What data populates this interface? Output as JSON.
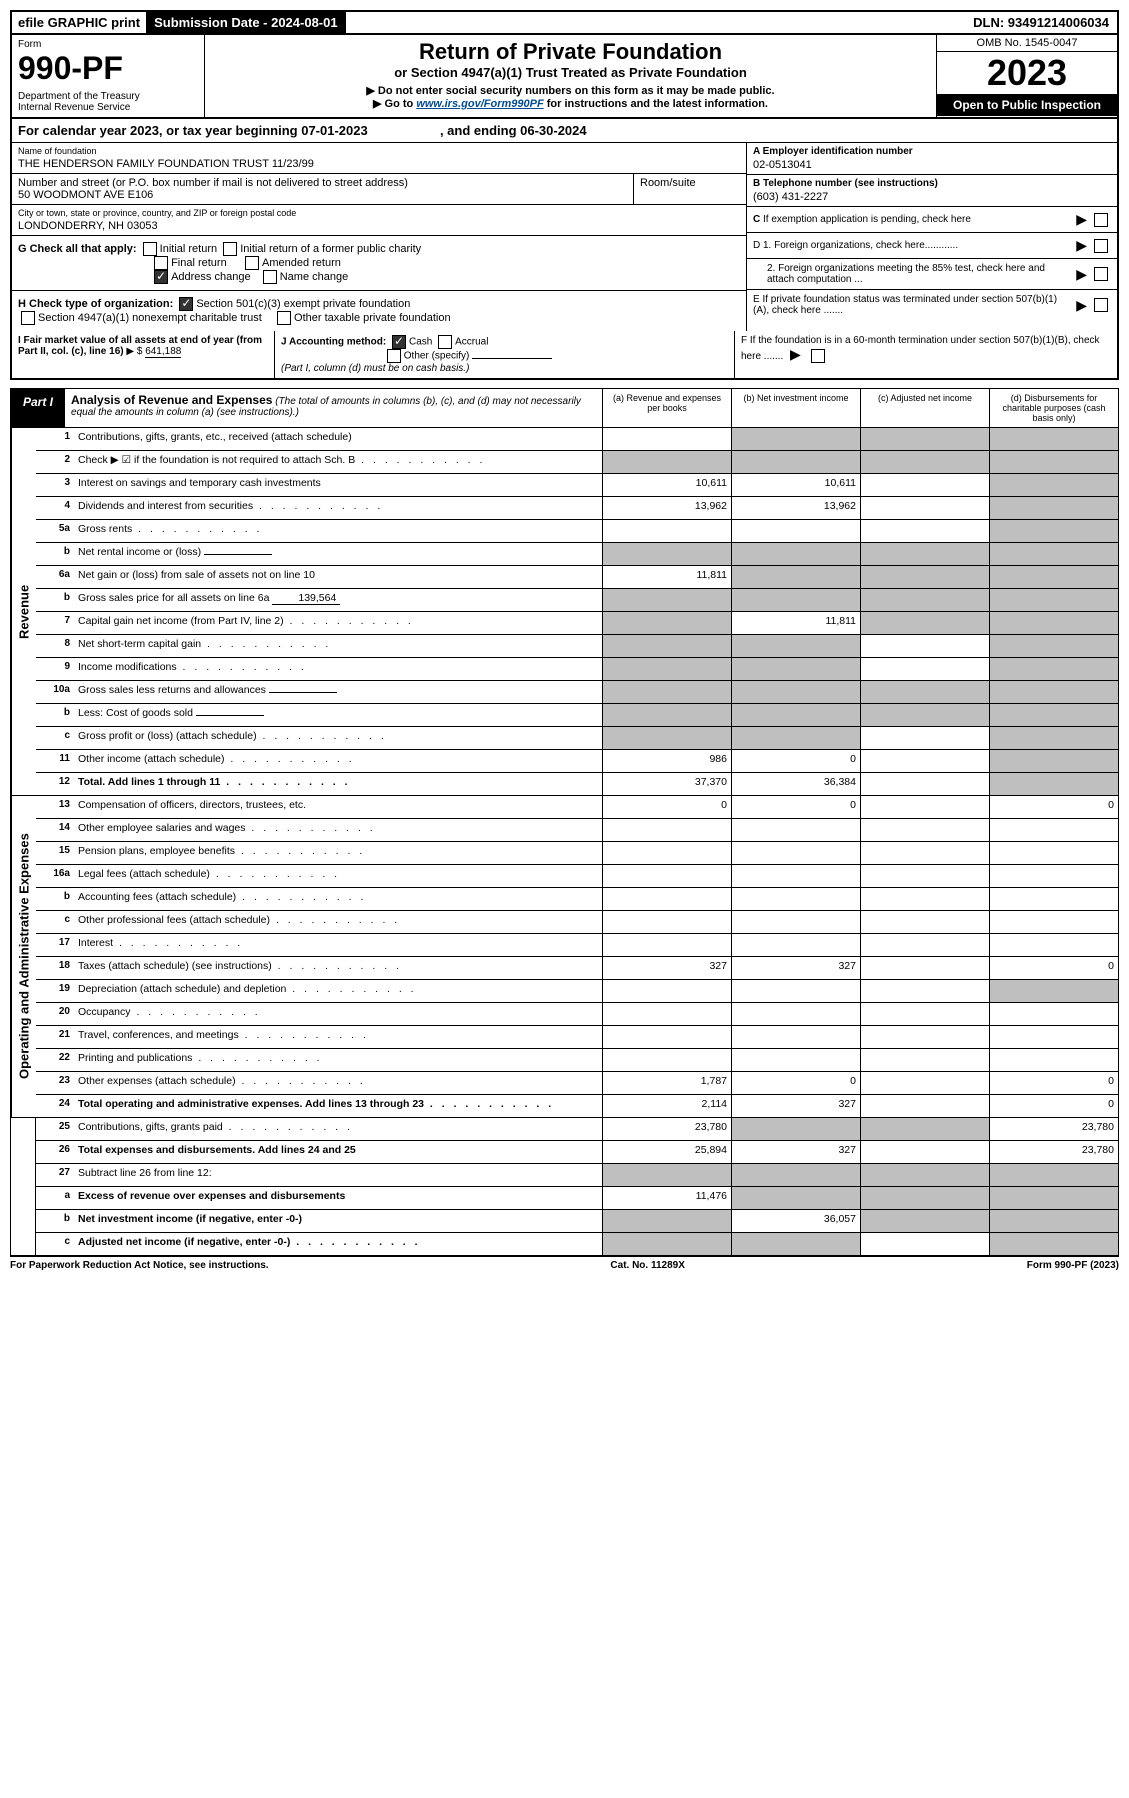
{
  "top": {
    "efile": "efile GRAPHIC print",
    "submission_label": "Submission Date - 2024-08-01",
    "dln": "DLN: 93491214006034"
  },
  "header": {
    "form_label": "Form",
    "form_no": "990-PF",
    "dept": "Department of the Treasury\nInternal Revenue Service",
    "title": "Return of Private Foundation",
    "subtitle": "or Section 4947(a)(1) Trust Treated as Private Foundation",
    "note1": "▶ Do not enter social security numbers on this form as it may be made public.",
    "note2": "▶ Go to ",
    "link": "www.irs.gov/Form990PF",
    "note2b": " for instructions and the latest information.",
    "omb": "OMB No. 1545-0047",
    "year": "2023",
    "open": "Open to Public Inspection"
  },
  "calyear": "For calendar year 2023, or tax year beginning 07-01-2023                    , and ending 06-30-2024",
  "info": {
    "name_label": "Name of foundation",
    "name": "THE HENDERSON FAMILY FOUNDATION TRUST 11/23/99",
    "ein_label": "A Employer identification number",
    "ein": "02-0513041",
    "addr_label": "Number and street (or P.O. box number if mail is not delivered to street address)",
    "addr": "50 WOODMONT AVE E106",
    "room_label": "Room/suite",
    "phone_label": "B Telephone number (see instructions)",
    "phone": "(603) 431-2227",
    "city_label": "City or town, state or province, country, and ZIP or foreign postal code",
    "city": "LONDONDERRY, NH  03053",
    "c_label": "C If exemption application is pending, check here",
    "d1": "D 1. Foreign organizations, check here............",
    "d2": "2. Foreign organizations meeting the 85% test, check here and attach computation ...",
    "e": "E If private foundation status was terminated under section 507(b)(1)(A), check here .......",
    "f": "F If the foundation is in a 60-month termination under section 507(b)(1)(B), check here .......",
    "g_label": "G Check all that apply:",
    "g_opts": [
      "Initial return",
      "Initial return of a former public charity",
      "Final return",
      "Amended return",
      "Address change",
      "Name change"
    ],
    "h_label": "H Check type of organization:",
    "h_opts": [
      "Section 501(c)(3) exempt private foundation",
      "Section 4947(a)(1) nonexempt charitable trust",
      "Other taxable private foundation"
    ],
    "i_label": "I Fair market value of all assets at end of year (from Part II, col. (c), line 16)",
    "i_val": "641,188",
    "j_label": "J Accounting method:",
    "j_opts": [
      "Cash",
      "Accrual",
      "Other (specify)"
    ],
    "j_note": "(Part I, column (d) must be on cash basis.)"
  },
  "part1": {
    "label": "Part I",
    "title": "Analysis of Revenue and Expenses",
    "desc": "(The total of amounts in columns (b), (c), and (d) may not necessarily equal the amounts in column (a) (see instructions).)",
    "col_a": "(a) Revenue and expenses per books",
    "col_b": "(b) Net investment income",
    "col_c": "(c) Adjusted net income",
    "col_d": "(d) Disbursements for charitable purposes (cash basis only)"
  },
  "sides": {
    "revenue": "Revenue",
    "expenses": "Operating and Administrative Expenses"
  },
  "rows": [
    {
      "n": "1",
      "d": "Contributions, gifts, grants, etc., received (attach schedule)",
      "a": "",
      "b": "s",
      "c": "s",
      "dd": "s"
    },
    {
      "n": "2",
      "d": "Check ▶ ☑ if the foundation is not required to attach Sch. B",
      "dots": true,
      "a": "s",
      "b": "s",
      "c": "s",
      "dd": "s"
    },
    {
      "n": "3",
      "d": "Interest on savings and temporary cash investments",
      "a": "10,611",
      "b": "10,611",
      "c": "",
      "dd": "s"
    },
    {
      "n": "4",
      "d": "Dividends and interest from securities",
      "dots": true,
      "a": "13,962",
      "b": "13,962",
      "c": "",
      "dd": "s"
    },
    {
      "n": "5a",
      "d": "Gross rents",
      "dots": true,
      "a": "",
      "b": "",
      "c": "",
      "dd": "s"
    },
    {
      "n": "b",
      "d": "Net rental income or (loss)",
      "inline": "",
      "a": "s",
      "b": "s",
      "c": "s",
      "dd": "s"
    },
    {
      "n": "6a",
      "d": "Net gain or (loss) from sale of assets not on line 10",
      "a": "11,811",
      "b": "s",
      "c": "s",
      "dd": "s"
    },
    {
      "n": "b",
      "d": "Gross sales price for all assets on line 6a",
      "inline": "139,564",
      "a": "s",
      "b": "s",
      "c": "s",
      "dd": "s"
    },
    {
      "n": "7",
      "d": "Capital gain net income (from Part IV, line 2)",
      "dots": true,
      "a": "s",
      "b": "11,811",
      "c": "s",
      "dd": "s"
    },
    {
      "n": "8",
      "d": "Net short-term capital gain",
      "dots": true,
      "a": "s",
      "b": "s",
      "c": "",
      "dd": "s"
    },
    {
      "n": "9",
      "d": "Income modifications",
      "dots": true,
      "a": "s",
      "b": "s",
      "c": "",
      "dd": "s"
    },
    {
      "n": "10a",
      "d": "Gross sales less returns and allowances",
      "inline": "",
      "a": "s",
      "b": "s",
      "c": "s",
      "dd": "s"
    },
    {
      "n": "b",
      "d": "Less: Cost of goods sold",
      "dots": true,
      "inline": "",
      "a": "s",
      "b": "s",
      "c": "s",
      "dd": "s"
    },
    {
      "n": "c",
      "d": "Gross profit or (loss) (attach schedule)",
      "dots": true,
      "a": "s",
      "b": "s",
      "c": "",
      "dd": "s"
    },
    {
      "n": "11",
      "d": "Other income (attach schedule)",
      "dots": true,
      "a": "986",
      "b": "0",
      "c": "",
      "dd": "s"
    },
    {
      "n": "12",
      "d": "Total. Add lines 1 through 11",
      "dots": true,
      "bold": true,
      "a": "37,370",
      "b": "36,384",
      "c": "",
      "dd": "s"
    },
    {
      "n": "13",
      "d": "Compensation of officers, directors, trustees, etc.",
      "a": "0",
      "b": "0",
      "c": "",
      "dd": "0"
    },
    {
      "n": "14",
      "d": "Other employee salaries and wages",
      "dots": true,
      "a": "",
      "b": "",
      "c": "",
      "dd": ""
    },
    {
      "n": "15",
      "d": "Pension plans, employee benefits",
      "dots": true,
      "a": "",
      "b": "",
      "c": "",
      "dd": ""
    },
    {
      "n": "16a",
      "d": "Legal fees (attach schedule)",
      "dots": true,
      "a": "",
      "b": "",
      "c": "",
      "dd": ""
    },
    {
      "n": "b",
      "d": "Accounting fees (attach schedule)",
      "dots": true,
      "a": "",
      "b": "",
      "c": "",
      "dd": ""
    },
    {
      "n": "c",
      "d": "Other professional fees (attach schedule)",
      "dots": true,
      "a": "",
      "b": "",
      "c": "",
      "dd": ""
    },
    {
      "n": "17",
      "d": "Interest",
      "dots": true,
      "a": "",
      "b": "",
      "c": "",
      "dd": ""
    },
    {
      "n": "18",
      "d": "Taxes (attach schedule) (see instructions)",
      "dots": true,
      "a": "327",
      "b": "327",
      "c": "",
      "dd": "0"
    },
    {
      "n": "19",
      "d": "Depreciation (attach schedule) and depletion",
      "dots": true,
      "a": "",
      "b": "",
      "c": "",
      "dd": "s"
    },
    {
      "n": "20",
      "d": "Occupancy",
      "dots": true,
      "a": "",
      "b": "",
      "c": "",
      "dd": ""
    },
    {
      "n": "21",
      "d": "Travel, conferences, and meetings",
      "dots": true,
      "a": "",
      "b": "",
      "c": "",
      "dd": ""
    },
    {
      "n": "22",
      "d": "Printing and publications",
      "dots": true,
      "a": "",
      "b": "",
      "c": "",
      "dd": ""
    },
    {
      "n": "23",
      "d": "Other expenses (attach schedule)",
      "dots": true,
      "a": "1,787",
      "b": "0",
      "c": "",
      "dd": "0"
    },
    {
      "n": "24",
      "d": "Total operating and administrative expenses. Add lines 13 through 23",
      "dots": true,
      "bold": true,
      "a": "2,114",
      "b": "327",
      "c": "",
      "dd": "0"
    },
    {
      "n": "25",
      "d": "Contributions, gifts, grants paid",
      "dots": true,
      "a": "23,780",
      "b": "s",
      "c": "s",
      "dd": "23,780"
    },
    {
      "n": "26",
      "d": "Total expenses and disbursements. Add lines 24 and 25",
      "bold": true,
      "a": "25,894",
      "b": "327",
      "c": "",
      "dd": "23,780"
    },
    {
      "n": "27",
      "d": "Subtract line 26 from line 12:",
      "a": "s",
      "b": "s",
      "c": "s",
      "dd": "s"
    },
    {
      "n": "a",
      "d": "Excess of revenue over expenses and disbursements",
      "bold": true,
      "a": "11,476",
      "b": "s",
      "c": "s",
      "dd": "s"
    },
    {
      "n": "b",
      "d": "Net investment income (if negative, enter -0-)",
      "bold": true,
      "a": "s",
      "b": "36,057",
      "c": "s",
      "dd": "s"
    },
    {
      "n": "c",
      "d": "Adjusted net income (if negative, enter -0-)",
      "dots": true,
      "bold": true,
      "a": "s",
      "b": "s",
      "c": "",
      "dd": "s"
    }
  ],
  "footer": {
    "left": "For Paperwork Reduction Act Notice, see instructions.",
    "mid": "Cat. No. 11289X",
    "right": "Form 990-PF (2023)"
  }
}
